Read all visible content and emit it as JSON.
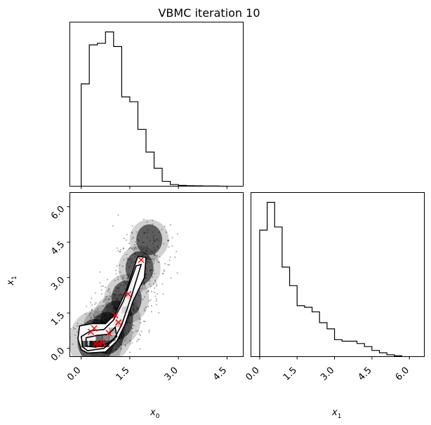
{
  "chart_data": {
    "type": "corner",
    "title": "VBMC iteration 10",
    "variables": [
      "x0",
      "x1"
    ],
    "axis_labels": {
      "x0": "x",
      "x0_sub": "0",
      "x1": "x",
      "x1_sub": "1"
    },
    "x0_range": [
      -0.35,
      5.0
    ],
    "x1_range": [
      -0.35,
      6.6
    ],
    "x0_ticks": [
      "0.0",
      "1.5",
      "3.0",
      "4.5"
    ],
    "x1_ticks": [
      "0.0",
      "1.5",
      "3.0",
      "4.5",
      "6.0"
    ],
    "x0_tick_values": [
      0.0,
      1.5,
      3.0,
      4.5
    ],
    "x1_tick_values": [
      0.0,
      1.5,
      3.0,
      4.5,
      6.0
    ],
    "hist_x0": {
      "bin_edges": [
        0.0,
        0.25,
        0.5,
        0.75,
        1.0,
        1.25,
        1.5,
        1.75,
        2.0,
        2.25,
        2.5,
        2.75,
        3.0,
        3.25,
        3.5,
        3.75,
        4.0,
        4.25,
        4.5
      ],
      "counts": [
        0.63,
        0.87,
        0.88,
        0.95,
        0.86,
        0.55,
        0.52,
        0.35,
        0.21,
        0.11,
        0.03,
        0.01,
        0.005,
        0.003,
        0.002,
        0.001,
        0.001,
        0.0
      ]
    },
    "hist_x1": {
      "bin_edges": [
        0.0,
        0.3,
        0.6,
        0.9,
        1.2,
        1.5,
        1.8,
        2.1,
        2.4,
        2.7,
        3.0,
        3.3,
        3.6,
        3.9,
        4.2,
        4.5,
        4.8,
        5.1,
        5.4,
        5.7
      ],
      "counts": [
        0.82,
        1.0,
        0.84,
        0.58,
        0.46,
        0.33,
        0.32,
        0.29,
        0.22,
        0.18,
        0.11,
        0.1,
        0.1,
        0.085,
        0.065,
        0.04,
        0.025,
        0.012,
        0.005
      ]
    },
    "scatter_markers": [
      {
        "x0": 0.3,
        "x1": 0.7
      },
      {
        "x0": 0.4,
        "x1": 0.85
      },
      {
        "x0": 0.45,
        "x1": 0.2
      },
      {
        "x0": 0.55,
        "x1": 0.2
      },
      {
        "x0": 0.65,
        "x1": 0.25
      },
      {
        "x0": 0.85,
        "x1": 0.65
      },
      {
        "x0": 1.05,
        "x1": 1.4
      },
      {
        "x0": 1.15,
        "x1": 1.1
      },
      {
        "x0": 1.45,
        "x1": 2.3
      },
      {
        "x0": 1.85,
        "x1": 3.75
      }
    ],
    "density_ridge": [
      {
        "x0": 0.45,
        "x1": 0.3
      },
      {
        "x0": 0.8,
        "x1": 0.65
      },
      {
        "x0": 1.1,
        "x1": 1.2
      },
      {
        "x0": 1.4,
        "x1": 2.1
      },
      {
        "x0": 1.8,
        "x1": 3.4
      },
      {
        "x0": 2.1,
        "x1": 4.6
      }
    ],
    "colors": {
      "marker": "#ff0000",
      "samples": "#000000",
      "hist": "#000000"
    }
  }
}
